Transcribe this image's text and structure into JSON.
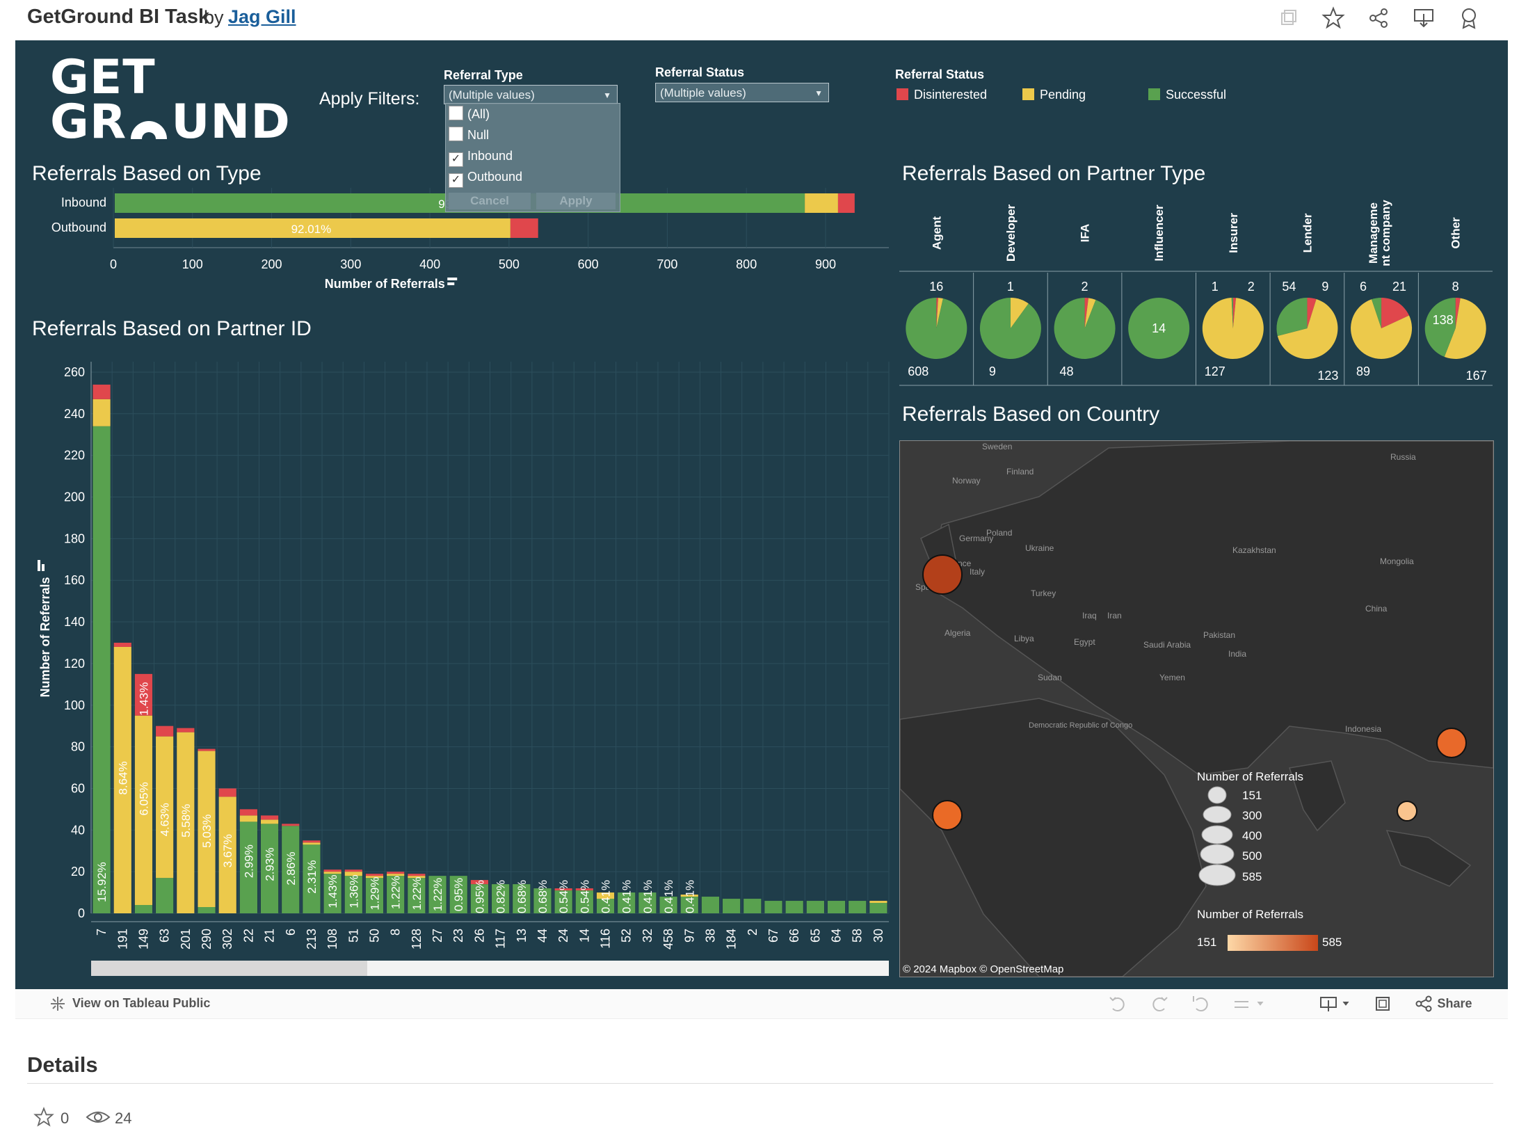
{
  "header": {
    "title": "GetGround BI Task",
    "by": "by",
    "author": "Jag Gill",
    "icons": [
      "copy-icon",
      "star-icon",
      "share-icon",
      "download-icon",
      "badge-icon"
    ]
  },
  "dashboard": {
    "logo_line1": "GET",
    "logo_line2": "GR",
    "logo_line2b": "UND",
    "apply_filters": "Apply Filters:",
    "filter_type": {
      "label": "Referral Type",
      "value": "(Multiple values)",
      "options": [
        {
          "label": "(All)",
          "checked": false
        },
        {
          "label": "Null",
          "checked": false
        },
        {
          "label": "Inbound",
          "checked": true
        },
        {
          "label": "Outbound",
          "checked": true
        }
      ],
      "cancel": "Cancel",
      "apply": "Apply"
    },
    "filter_status": {
      "label": "Referral Status",
      "value": "(Multiple values)"
    },
    "legend": {
      "title": "Referral Status",
      "items": [
        {
          "label": "Disinterested",
          "color": "#e0474c"
        },
        {
          "label": "Pending",
          "color": "#ecc94b"
        },
        {
          "label": "Successful",
          "color": "#59a14f"
        }
      ]
    }
  },
  "chart_data": [
    {
      "type": "bar",
      "orientation": "horizontal",
      "stacked": true,
      "title": "Referrals Based on Type",
      "categories": [
        "Inbound",
        "Outbound"
      ],
      "series": [
        {
          "name": "Successful",
          "values": [
            872,
            0
          ]
        },
        {
          "name": "Pending",
          "values": [
            42,
            500
          ]
        },
        {
          "name": "Disinterested",
          "values": [
            21,
            35
          ]
        }
      ],
      "data_labels": [
        "93.33%",
        "92.01%"
      ],
      "xlabel": "Number of Referrals",
      "xticks": [
        0,
        100,
        200,
        300,
        400,
        500,
        600,
        700,
        800,
        900
      ],
      "xlim": [
        0,
        980
      ]
    },
    {
      "type": "bar",
      "stacked": true,
      "title": "Referrals Based on Partner ID",
      "ylabel": "Number of Referrals",
      "ylim": [
        0,
        265
      ],
      "yticks": [
        0,
        20,
        40,
        60,
        80,
        100,
        120,
        140,
        160,
        180,
        200,
        220,
        240,
        260
      ],
      "categories": [
        "7",
        "191",
        "149",
        "63",
        "201",
        "290",
        "302",
        "22",
        "21",
        "6",
        "213",
        "108",
        "51",
        "50",
        "8",
        "128",
        "27",
        "23",
        "26",
        "117",
        "13",
        "44",
        "24",
        "14",
        "116",
        "52",
        "32",
        "458",
        "97",
        "38",
        "184",
        "2",
        "67",
        "66",
        "65",
        "64",
        "58",
        "30"
      ],
      "series": [
        {
          "name": "Successful",
          "values": [
            234,
            0,
            4,
            17,
            0,
            3,
            0,
            44,
            43,
            42,
            33,
            19,
            18,
            17,
            18,
            17,
            18,
            18,
            14,
            14,
            14,
            12,
            11,
            11,
            7,
            10,
            10,
            8,
            8,
            8,
            7,
            7,
            6,
            6,
            6,
            6,
            6,
            5
          ]
        },
        {
          "name": "Pending",
          "values": [
            13,
            128,
            91,
            68,
            87,
            75,
            56,
            3,
            2,
            0,
            1,
            1,
            2,
            1,
            1,
            1,
            0,
            0,
            0,
            0,
            0,
            0,
            0,
            0,
            3,
            0,
            0,
            0,
            1,
            0,
            0,
            0,
            0,
            0,
            0,
            0,
            0,
            1
          ]
        },
        {
          "name": "Disinterested",
          "values": [
            7,
            2,
            20,
            5,
            2,
            1,
            4,
            3,
            2,
            1,
            1,
            1,
            1,
            1,
            1,
            1,
            0,
            0,
            2,
            0,
            0,
            0,
            1,
            1,
            0,
            0,
            0,
            0,
            0,
            0,
            0,
            0,
            0,
            0,
            0,
            0,
            0,
            0
          ]
        }
      ],
      "data_labels": [
        "15.92%",
        "8.64%",
        "1.43%",
        "6.05%",
        "4.63%",
        "5.58%",
        "5.03%",
        "3.67%",
        "2.99%",
        "2.93%",
        "2.86%",
        "2.31%",
        "1.43%",
        "1.36%",
        "1.29%",
        "1.22%",
        "1.22%",
        "1.22%",
        "0.95%",
        "0.95%",
        "0.82%",
        "0.68%",
        "0.68%",
        "0.54%",
        "0.54%",
        "0.41%",
        "0.41%",
        "0.41%",
        "0.41%",
        "0.41%"
      ]
    },
    {
      "type": "pie",
      "title": "Referrals Based on Partner Type",
      "categories": [
        "Agent",
        "Developer",
        "IFA",
        "Influencer",
        "Insurer",
        "Lender",
        "Management company",
        "Other"
      ],
      "header_labels": [
        "Agent",
        "Developer",
        "IFA",
        "Influencer",
        "Insurer",
        "Lender",
        "Manageme nt company",
        "Other"
      ],
      "series": [
        {
          "name": "Successful",
          "values": [
            608,
            9,
            48,
            14,
            1,
            54,
            6,
            138
          ]
        },
        {
          "name": "Pending",
          "values": [
            16,
            1,
            2,
            0,
            127,
            123,
            89,
            167
          ]
        },
        {
          "name": "Disinterested",
          "values": [
            6,
            0,
            1,
            0,
            2,
            9,
            21,
            8
          ]
        }
      ],
      "labels_top_left": [
        "",
        "",
        "",
        "",
        "1",
        "54",
        "6",
        ""
      ],
      "labels_top_right": [
        "16",
        "1",
        "2",
        "",
        "2",
        "9",
        "21",
        "8"
      ],
      "labels_bottom_left": [
        "608",
        "9",
        "48",
        "",
        "127",
        "",
        "89",
        ""
      ],
      "labels_bottom_right": [
        "",
        "",
        "",
        "",
        "",
        "123",
        "",
        "167"
      ],
      "labels_center": [
        "",
        "",
        "",
        "14",
        "",
        "",
        "",
        "138"
      ]
    }
  ],
  "map": {
    "title": "Referrals Based on Country",
    "places": [
      "Sweden",
      "Finland",
      "Norway",
      "Russia",
      "Germany",
      "Poland",
      "Ukraine",
      "Kazakhstan",
      "France",
      "Italy",
      "Mongolia",
      "Spain",
      "Turkey",
      "China",
      "Iraq",
      "Iran",
      "Algeria",
      "Libya",
      "Egypt",
      "Saudi Arabia",
      "Pakistan",
      "India",
      "Sudan",
      "Yemen",
      "Democratic Republic of Congo",
      "Indonesia"
    ],
    "bubbles": [
      {
        "location": "United Kingdom",
        "value": 585,
        "color": "#b3401a"
      },
      {
        "location": "Vietnam",
        "value": 300,
        "color": "#e8692a"
      },
      {
        "location": "West Africa",
        "value": 300,
        "color": "#ea6a26"
      },
      {
        "location": "Indonesia",
        "value": 151,
        "color": "#f9c48e"
      }
    ],
    "size_legend_title": "Number of Referrals",
    "size_legend_values": [
      "151",
      "300",
      "400",
      "500",
      "585"
    ],
    "color_legend_title": "Number of Referrals",
    "color_min": "151",
    "color_max": "585",
    "attribution": "© 2024 Mapbox  © OpenStreetMap"
  },
  "footer": {
    "view_on": "View on Tableau Public",
    "share": "Share"
  },
  "details": {
    "title": "Details",
    "stars": "0",
    "views": "24"
  }
}
